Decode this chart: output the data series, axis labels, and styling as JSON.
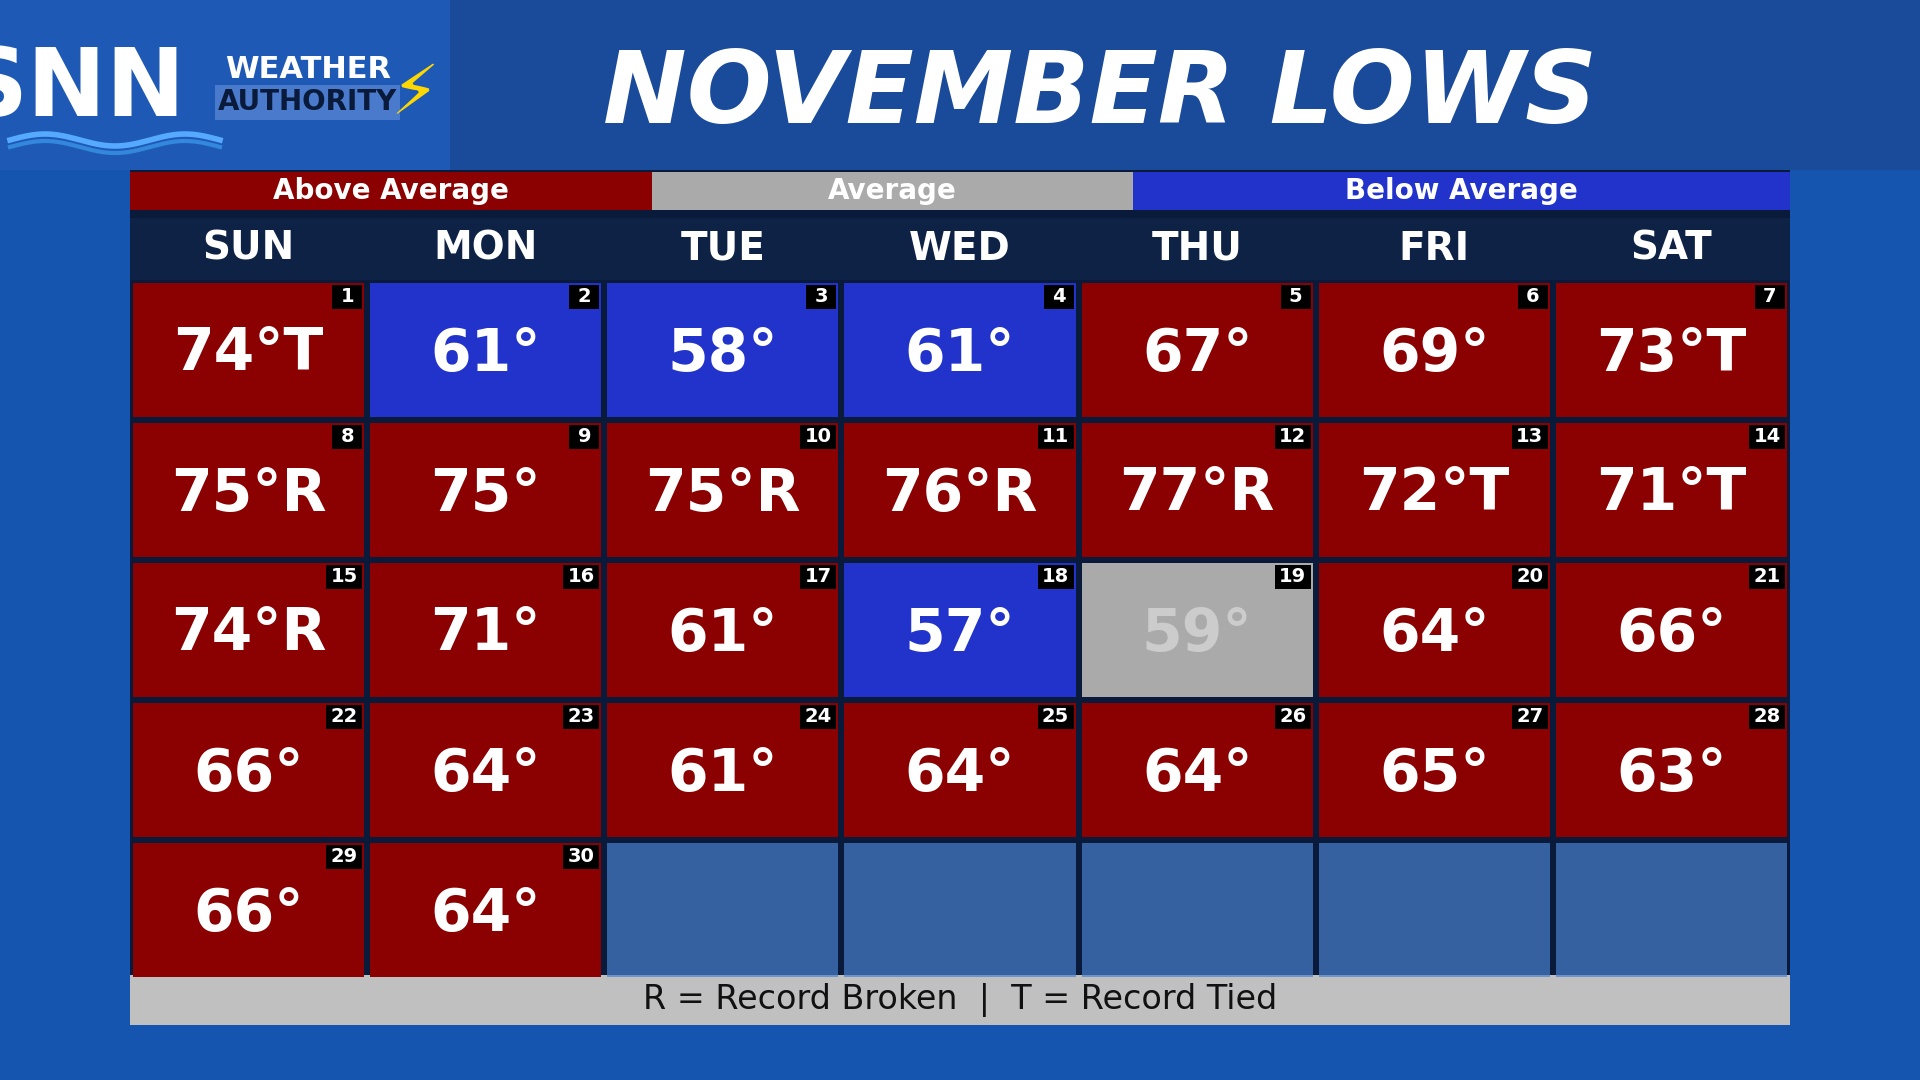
{
  "title": "NOVEMBER LOWS",
  "days_header": [
    "SUN",
    "MON",
    "TUE",
    "WED",
    "THU",
    "FRI",
    "SAT"
  ],
  "cells": [
    {
      "day": 1,
      "temp": "74°T",
      "col": 0,
      "row": 0,
      "bg": "#8B0000"
    },
    {
      "day": 2,
      "temp": "61°",
      "col": 1,
      "row": 0,
      "bg": "#2233CC"
    },
    {
      "day": 3,
      "temp": "58°",
      "col": 2,
      "row": 0,
      "bg": "#2233CC"
    },
    {
      "day": 4,
      "temp": "61°",
      "col": 3,
      "row": 0,
      "bg": "#2233CC"
    },
    {
      "day": 5,
      "temp": "67°",
      "col": 4,
      "row": 0,
      "bg": "#8B0000"
    },
    {
      "day": 6,
      "temp": "69°",
      "col": 5,
      "row": 0,
      "bg": "#8B0000"
    },
    {
      "day": 7,
      "temp": "73°T",
      "col": 6,
      "row": 0,
      "bg": "#8B0000"
    },
    {
      "day": 8,
      "temp": "75°R",
      "col": 0,
      "row": 1,
      "bg": "#8B0000"
    },
    {
      "day": 9,
      "temp": "75°",
      "col": 1,
      "row": 1,
      "bg": "#8B0000"
    },
    {
      "day": 10,
      "temp": "75°R",
      "col": 2,
      "row": 1,
      "bg": "#8B0000"
    },
    {
      "day": 11,
      "temp": "76°R",
      "col": 3,
      "row": 1,
      "bg": "#8B0000"
    },
    {
      "day": 12,
      "temp": "77°R",
      "col": 4,
      "row": 1,
      "bg": "#8B0000"
    },
    {
      "day": 13,
      "temp": "72°T",
      "col": 5,
      "row": 1,
      "bg": "#8B0000"
    },
    {
      "day": 14,
      "temp": "71°T",
      "col": 6,
      "row": 1,
      "bg": "#8B0000"
    },
    {
      "day": 15,
      "temp": "74°R",
      "col": 0,
      "row": 2,
      "bg": "#8B0000"
    },
    {
      "day": 16,
      "temp": "71°",
      "col": 1,
      "row": 2,
      "bg": "#8B0000"
    },
    {
      "day": 17,
      "temp": "61°",
      "col": 2,
      "row": 2,
      "bg": "#8B0000"
    },
    {
      "day": 18,
      "temp": "57°",
      "col": 3,
      "row": 2,
      "bg": "#2233CC"
    },
    {
      "day": 19,
      "temp": "59°",
      "col": 4,
      "row": 2,
      "bg": "#AAAAAA"
    },
    {
      "day": 20,
      "temp": "64°",
      "col": 5,
      "row": 2,
      "bg": "#8B0000"
    },
    {
      "day": 21,
      "temp": "66°",
      "col": 6,
      "row": 2,
      "bg": "#8B0000"
    },
    {
      "day": 22,
      "temp": "66°",
      "col": 0,
      "row": 3,
      "bg": "#8B0000"
    },
    {
      "day": 23,
      "temp": "64°",
      "col": 1,
      "row": 3,
      "bg": "#8B0000"
    },
    {
      "day": 24,
      "temp": "61°",
      "col": 2,
      "row": 3,
      "bg": "#8B0000"
    },
    {
      "day": 25,
      "temp": "64°",
      "col": 3,
      "row": 3,
      "bg": "#8B0000"
    },
    {
      "day": 26,
      "temp": "64°",
      "col": 4,
      "row": 3,
      "bg": "#8B0000"
    },
    {
      "day": 27,
      "temp": "65°",
      "col": 5,
      "row": 3,
      "bg": "#8B0000"
    },
    {
      "day": 28,
      "temp": "63°",
      "col": 6,
      "row": 3,
      "bg": "#8B0000"
    },
    {
      "day": 29,
      "temp": "66°",
      "col": 0,
      "row": 4,
      "bg": "#8B0000"
    },
    {
      "day": 30,
      "temp": "64°",
      "col": 1,
      "row": 4,
      "bg": "#8B0000"
    }
  ],
  "legend_above_color": "#8B0000",
  "legend_avg_color": "#AAAAAA",
  "legend_below_color": "#2233CC",
  "bg_dark": "#0a1a3a",
  "bg_blue": "#1555b0",
  "header_bg": "#0d2244",
  "cal_bg": "#0d2244",
  "footer_text": "R = Record Broken  |  T = Record Tied",
  "footer_bg": "#C0C0C0",
  "empty_row_bg": "#4a80cc",
  "gap_color": "#2244aa"
}
